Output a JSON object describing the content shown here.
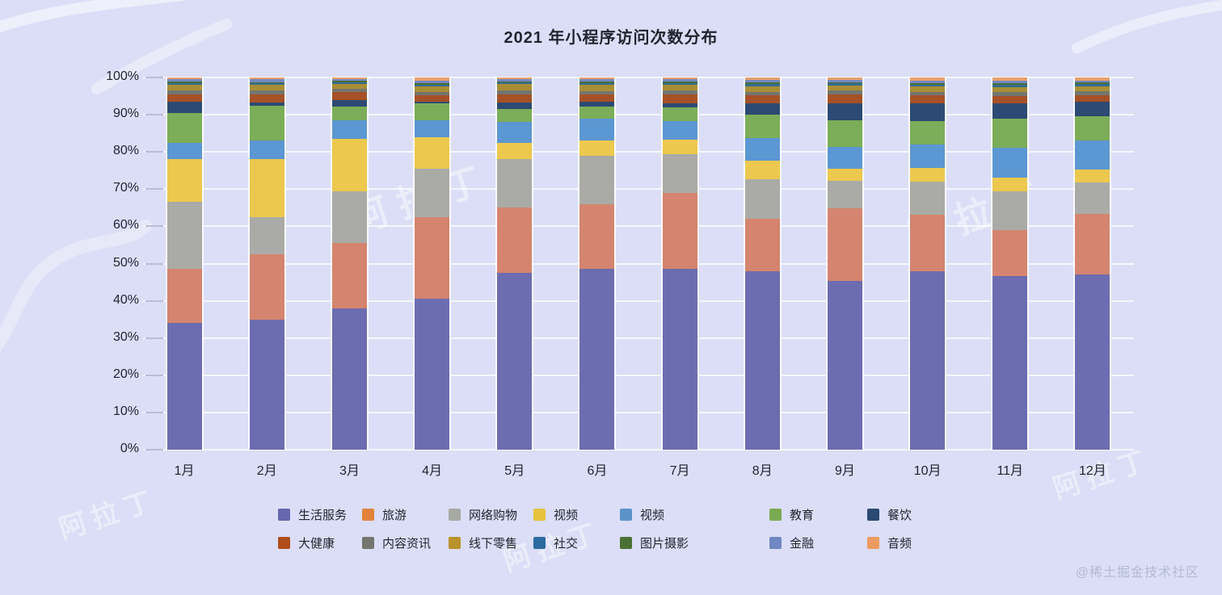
{
  "title": "2021 年小程序访问次数分布",
  "credit": "@稀土掘金技术社区",
  "watermark_brand": "阿拉丁",
  "chart_data": {
    "type": "bar",
    "stacked": true,
    "percent": true,
    "title": "2021 年小程序访问次数分布",
    "xlabel": "",
    "ylabel": "",
    "ylim": [
      0,
      100
    ],
    "grid": true,
    "legend_position": "bottom",
    "y_tick_labels": [
      "0%",
      "10%",
      "20%",
      "30%",
      "40%",
      "50%",
      "60%",
      "70%",
      "80%",
      "90%",
      "100%"
    ],
    "categories": [
      "1月",
      "2月",
      "3月",
      "4月",
      "5月",
      "6月",
      "7月",
      "8月",
      "9月",
      "10月",
      "11月",
      "12月"
    ],
    "series": [
      {
        "name": "生活服务",
        "color": "#6c6cb0",
        "legend_color": "#6667ad",
        "values": [
          34,
          35,
          38,
          40.5,
          47.5,
          48.5,
          48.5,
          48,
          45.3,
          48,
          46.7,
          47
        ]
      },
      {
        "name": "旅游",
        "color": "#d5846f",
        "legend_color": "#e2833c",
        "values": [
          14.5,
          17.5,
          17.5,
          22,
          17.5,
          17.4,
          20.5,
          14,
          19.5,
          15.1,
          12.3,
          16.3
        ]
      },
      {
        "name": "网络购物",
        "color": "#aaaba6",
        "legend_color": "#a7a9a4",
        "values": [
          18,
          10,
          14,
          13,
          13,
          13,
          10.3,
          10.7,
          7.4,
          8.9,
          10.5,
          8.6
        ]
      },
      {
        "name": "视频",
        "color": "#ecc84e",
        "legend_color": "#e7c23e",
        "values": [
          11.5,
          15.5,
          14,
          8.5,
          4.5,
          4.1,
          4.1,
          5,
          3.3,
          3.8,
          3.6,
          3.4
        ]
      },
      {
        "name": "视频",
        "color": "#5b97d2",
        "legend_color": "#5b93c9",
        "values": [
          4.5,
          5,
          5,
          4.5,
          5.5,
          6,
          4.9,
          6,
          5.9,
          6.2,
          8.1,
          7.7
        ]
      },
      {
        "name": "教育",
        "color": "#7cad58",
        "legend_color": "#7aaa51",
        "values": [
          8,
          9.5,
          3.8,
          4.6,
          3.5,
          3.3,
          3.6,
          6.3,
          7.1,
          6.3,
          7.8,
          6.5
        ]
      },
      {
        "name": "餐饮",
        "color": "#2c4a73",
        "legend_color": "#2b4a73",
        "values": [
          3,
          0.8,
          1.6,
          0.4,
          1.8,
          1.1,
          1.2,
          3,
          4.6,
          4.7,
          4.1,
          3.9
        ]
      },
      {
        "name": "大健康",
        "color": "#a65127",
        "legend_color": "#b04d1d",
        "values": [
          2,
          2.2,
          2.1,
          1.7,
          2.2,
          2,
          2.4,
          2.2,
          2.4,
          2.3,
          2,
          1.8
        ]
      },
      {
        "name": "内容资讯",
        "color": "#74756f",
        "legend_color": "#75766f",
        "values": [
          1,
          1,
          0.9,
          0.8,
          1,
          1,
          1,
          1,
          1,
          0.9,
          0.9,
          1.1
        ]
      },
      {
        "name": "线下零售",
        "color": "#a98e35",
        "legend_color": "#b8922b",
        "values": [
          1.5,
          1.5,
          1.3,
          1.6,
          1.7,
          1.6,
          1.5,
          1.5,
          1.4,
          1.4,
          1.5,
          1.4
        ]
      },
      {
        "name": "社交",
        "color": "#326c93",
        "legend_color": "#2c6ba0",
        "values": [
          0.5,
          0.4,
          0.5,
          0.5,
          0.5,
          0.5,
          0.5,
          0.6,
          0.5,
          0.5,
          0.6,
          0.5
        ]
      },
      {
        "name": "图片摄影",
        "color": "#49703b",
        "legend_color": "#4a7133",
        "values": [
          0.4,
          0.3,
          0.4,
          0.4,
          0.3,
          0.4,
          0.4,
          0.4,
          0.4,
          0.4,
          0.4,
          0.4
        ]
      },
      {
        "name": "金融",
        "color": "#7388c2",
        "legend_color": "#7187c4",
        "values": [
          0.6,
          0.8,
          0.5,
          0.7,
          0.5,
          0.6,
          0.6,
          0.7,
          0.6,
          0.7,
          0.7,
          0.6
        ]
      },
      {
        "name": "音频",
        "color": "#e8a06b",
        "legend_color": "#eb9b5f",
        "values": [
          0.5,
          0.5,
          0.4,
          0.8,
          0.5,
          0.5,
          0.5,
          0.6,
          0.6,
          0.8,
          0.8,
          0.8
        ]
      }
    ]
  }
}
